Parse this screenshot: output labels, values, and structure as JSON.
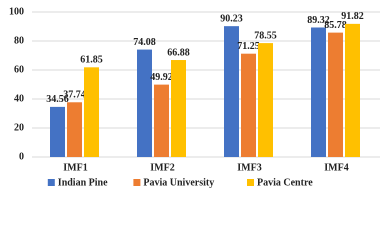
{
  "chart_data": {
    "type": "bar",
    "categories": [
      "IMF1",
      "IMF2",
      "IMF3",
      "IMF4"
    ],
    "series": [
      {
        "name": "Indian Pine",
        "color": "#4472c4",
        "values": [
          34.56,
          74.08,
          90.23,
          89.32
        ]
      },
      {
        "name": "Pavia University",
        "color": "#ed7d31",
        "values": [
          37.74,
          49.92,
          71.25,
          85.78
        ]
      },
      {
        "name": "Pavia Centre",
        "color": "#ffc000",
        "values": [
          61.85,
          66.88,
          78.55,
          91.82
        ]
      }
    ],
    "ylim": [
      0,
      100
    ],
    "yticks": [
      0,
      20,
      40,
      60,
      80,
      100
    ],
    "grid": true,
    "legend": "bottom"
  }
}
